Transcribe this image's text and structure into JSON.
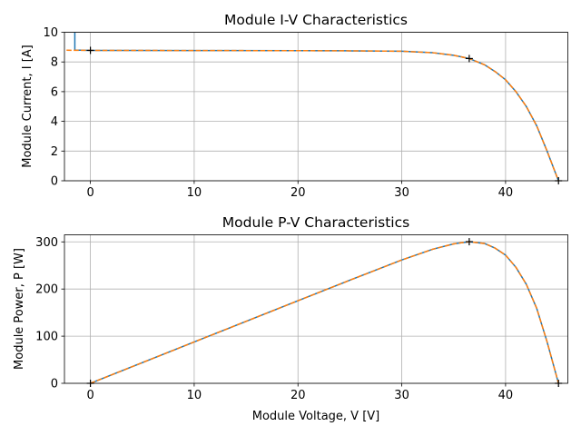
{
  "chart_data": [
    {
      "type": "line",
      "title": "Module I-V Characteristics",
      "xlabel": "",
      "ylabel": "Module Current, I [A]",
      "xlim": [
        -2.5,
        46
      ],
      "ylim": [
        0,
        10
      ],
      "xticks": [
        0,
        10,
        20,
        30,
        40
      ],
      "yticks": [
        0,
        2,
        4,
        6,
        8,
        10
      ],
      "grid": true,
      "series": [
        {
          "color": "#1f77b4",
          "style": "solid",
          "points": [
            [
              -1.5,
              10.4
            ],
            [
              -1.5,
              8.8
            ],
            [
              0,
              8.78
            ],
            [
              10,
              8.77
            ],
            [
              20,
              8.76
            ],
            [
              25,
              8.75
            ],
            [
              30,
              8.72
            ],
            [
              33,
              8.62
            ],
            [
              35,
              8.45
            ],
            [
              36.5,
              8.23
            ],
            [
              38,
              7.8
            ],
            [
              39,
              7.35
            ],
            [
              40,
              6.8
            ],
            [
              41,
              6.0
            ],
            [
              42,
              5.0
            ],
            [
              43,
              3.7
            ],
            [
              44,
              2.0
            ],
            [
              44.6,
              0.9
            ],
            [
              45.1,
              0
            ]
          ]
        },
        {
          "color": "#ff7f0e",
          "style": "dashed",
          "points": [
            [
              -2.3,
              8.79
            ],
            [
              0,
              8.78
            ],
            [
              10,
              8.77
            ],
            [
              20,
              8.76
            ],
            [
              25,
              8.75
            ],
            [
              30,
              8.72
            ],
            [
              33,
              8.62
            ],
            [
              35,
              8.45
            ],
            [
              36.5,
              8.23
            ],
            [
              38,
              7.8
            ],
            [
              39,
              7.35
            ],
            [
              40,
              6.8
            ],
            [
              41,
              6.0
            ],
            [
              42,
              5.0
            ],
            [
              43,
              3.7
            ],
            [
              44,
              2.0
            ],
            [
              44.6,
              0.9
            ],
            [
              45.1,
              0
            ]
          ]
        }
      ],
      "markers": [
        [
          0,
          8.78
        ],
        [
          36.5,
          8.23
        ],
        [
          45.1,
          0
        ]
      ]
    },
    {
      "type": "line",
      "title": "Module P-V Characteristics",
      "xlabel": "Module Voltage, V [V]",
      "ylabel": "Module Power, P [W]",
      "xlim": [
        -2.5,
        46
      ],
      "ylim": [
        0,
        315
      ],
      "xticks": [
        0,
        10,
        20,
        30,
        40
      ],
      "yticks": [
        0,
        100,
        200,
        300
      ],
      "grid": true,
      "series": [
        {
          "color": "#1f77b4",
          "style": "solid",
          "points": [
            [
              0,
              0
            ],
            [
              10,
              87.7
            ],
            [
              20,
              175.2
            ],
            [
              25,
              218.8
            ],
            [
              30,
              261.6
            ],
            [
              33,
              284.5
            ],
            [
              35,
              295.8
            ],
            [
              36.5,
              300.4
            ],
            [
              38,
              296.4
            ],
            [
              39,
              286.7
            ],
            [
              40,
              272.0
            ],
            [
              41,
              246.0
            ],
            [
              42,
              210.0
            ],
            [
              43,
              159.1
            ],
            [
              44,
              88.0
            ],
            [
              44.6,
              40.1
            ],
            [
              45.1,
              0
            ]
          ]
        },
        {
          "color": "#ff7f0e",
          "style": "dashed",
          "points": [
            [
              0,
              0
            ],
            [
              10,
              87.7
            ],
            [
              20,
              175.2
            ],
            [
              25,
              218.8
            ],
            [
              30,
              261.6
            ],
            [
              33,
              284.5
            ],
            [
              35,
              295.8
            ],
            [
              36.5,
              300.4
            ],
            [
              38,
              296.4
            ],
            [
              39,
              286.7
            ],
            [
              40,
              272.0
            ],
            [
              41,
              246.0
            ],
            [
              42,
              210.0
            ],
            [
              43,
              159.1
            ],
            [
              44,
              88.0
            ],
            [
              44.6,
              40.1
            ],
            [
              45.1,
              0
            ]
          ]
        }
      ],
      "markers": [
        [
          0,
          0
        ],
        [
          36.5,
          300.4
        ],
        [
          45.1,
          0
        ]
      ]
    }
  ]
}
